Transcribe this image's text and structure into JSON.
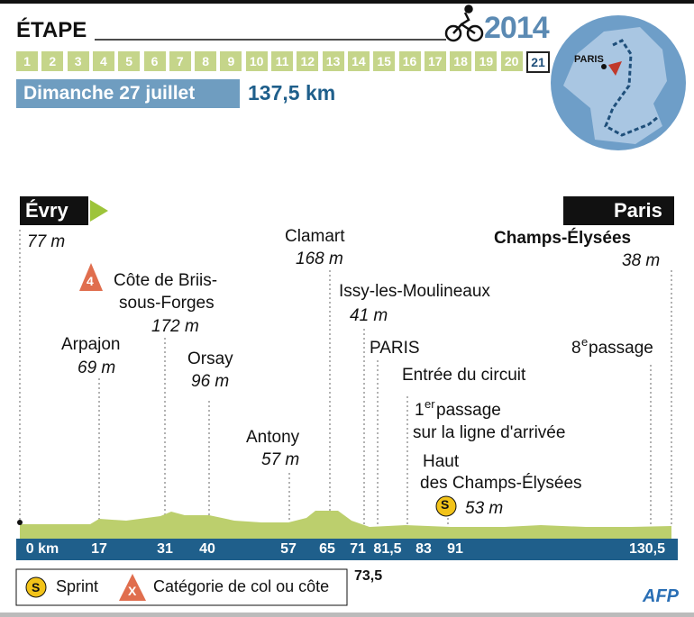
{
  "header": {
    "title": "ÉTAPE",
    "year": "2014",
    "stages": [
      "1",
      "2",
      "3",
      "4",
      "5",
      "6",
      "7",
      "8",
      "9",
      "10",
      "11",
      "12",
      "13",
      "14",
      "15",
      "16",
      "17",
      "18",
      "19",
      "20",
      "21"
    ],
    "date": "Dimanche 27 juillet",
    "distance": "137,5 km"
  },
  "map": {
    "label": "PARIS"
  },
  "start": {
    "name": "Évry",
    "altitude": "77 m"
  },
  "finish": {
    "name": "Paris",
    "place": "Champs-Élysées",
    "altitude": "38 m"
  },
  "waypoints": [
    {
      "name": "Arpajon",
      "altitude": "69 m"
    },
    {
      "category": "4",
      "name": "Côte de Briis-",
      "name2": "sous-Forges",
      "altitude": "172 m"
    },
    {
      "name": "Orsay",
      "altitude": "96 m"
    },
    {
      "name": "Antony",
      "altitude": "57 m"
    },
    {
      "name": "Clamart",
      "altitude": "168 m"
    },
    {
      "name": "Issy-les-Moulineaux",
      "altitude": "41 m"
    },
    {
      "name": "PARIS"
    },
    {
      "name": "Entrée du circuit"
    },
    {
      "number": "1",
      "sup": "er",
      "name": " passage",
      "name2": "sur la ligne d'arrivée"
    },
    {
      "name": "Haut",
      "name2": "des Champs-Élysées",
      "sprint": "S",
      "altitude": "53 m"
    },
    {
      "number": "8",
      "sup": "e",
      "name": " passage"
    }
  ],
  "km_marks": [
    "0 km",
    "17",
    "31",
    "40",
    "57",
    "65",
    "71",
    "81,5",
    "83",
    "91",
    "130,5"
  ],
  "km_extra": "73,5",
  "legend": [
    {
      "icon": "S",
      "label": "Sprint"
    },
    {
      "icon": "X",
      "label": "Catégorie de col ou côte"
    }
  ],
  "credit": "AFP"
}
